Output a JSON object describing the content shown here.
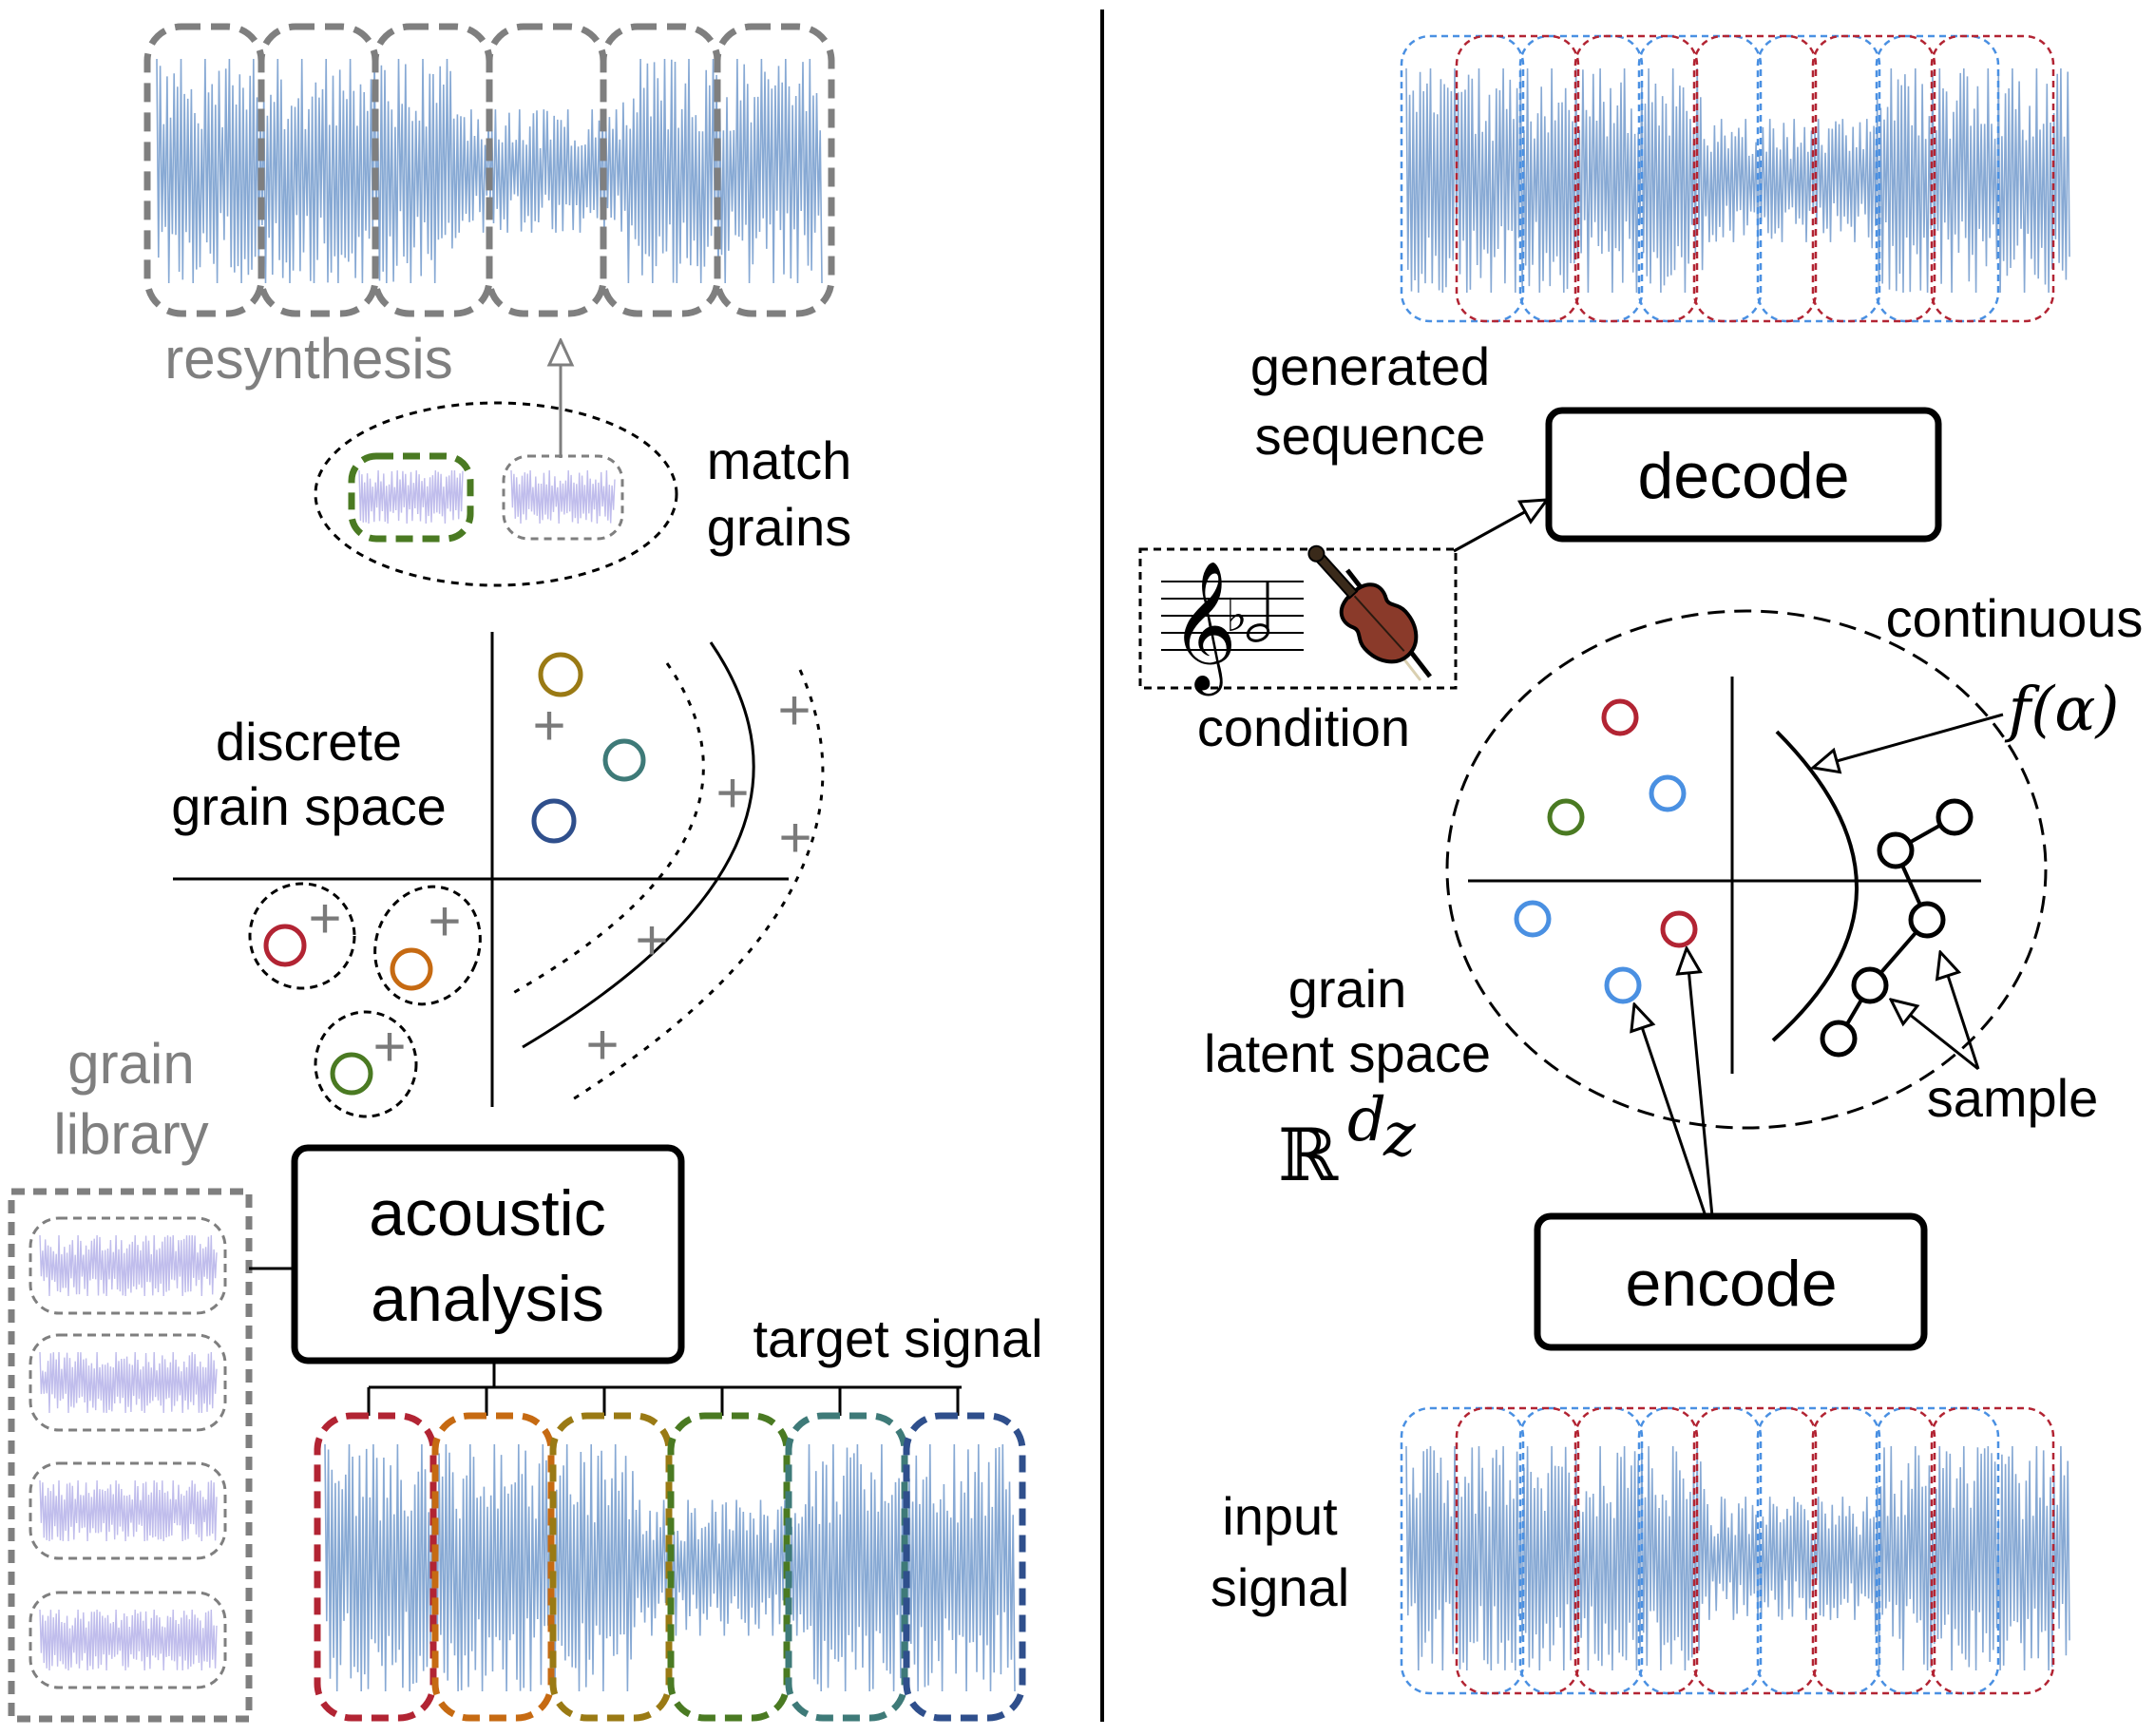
{
  "left": {
    "resynthesis_label": "resynthesis",
    "match_grains_line1": "match",
    "match_grains_line2": "grains",
    "discrete_line1": "discrete",
    "discrete_line2": "grain space",
    "grain_library_line1": "grain",
    "grain_library_line2": "library",
    "acoustic_line1": "acoustic",
    "acoustic_line2": "analysis",
    "target_signal_label": "target signal",
    "plus_symbol": "+"
  },
  "right": {
    "generated_line1": "generated",
    "generated_line2": "sequence",
    "decode_label": "decode",
    "condition_label": "condition",
    "continuous_label": "continuous",
    "f_alpha_label": "f(α)",
    "grain_latent_line1": "grain",
    "grain_latent_line2": "latent space",
    "real_space_base": "ℝ",
    "real_space_exp": "d",
    "real_space_sub": "z",
    "sample_label": "sample",
    "encode_label": "encode",
    "input_line1": "input",
    "input_line2": "signal"
  },
  "colors": {
    "waveform": "#7aa0cf",
    "grain_fill": "#b9b6ea",
    "gray_border": "#7f7f7f",
    "red": "#b22433",
    "orange": "#c66a12",
    "olive": "#9a7a14",
    "green": "#4a7a22",
    "teal": "#3e7a78",
    "navy": "#2f4f8c",
    "blue": "#4a90e2",
    "violin": "#8a3a2a"
  },
  "icons": {
    "music_staff": "treble-clef-staff-icon",
    "violin": "violin-icon"
  }
}
